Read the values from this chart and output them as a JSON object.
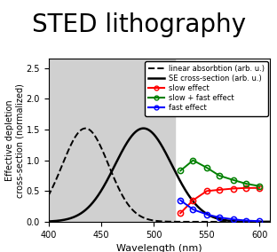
{
  "title": "STED lithography",
  "xlabel": "Wavelength (nm)",
  "ylabel": "Effective depletion\ncross-section (normalized)",
  "xlim": [
    400,
    610
  ],
  "ylim": [
    0,
    2.65
  ],
  "yticks": [
    0,
    0.5,
    1,
    1.5,
    2,
    2.5
  ],
  "xticks": [
    400,
    450,
    500,
    550,
    600
  ],
  "shaded_region": [
    400,
    520
  ],
  "shade_color": "#d0d0d0",
  "dashed_peak": 435,
  "dashed_sigma": 22,
  "dashed_amplitude": 1.52,
  "solid_peak": 490,
  "solid_sigma": 27,
  "solid_amplitude": 1.52,
  "red_x": [
    525,
    537,
    550,
    562,
    575,
    587,
    600
  ],
  "red_y": [
    0.14,
    0.35,
    0.5,
    0.52,
    0.54,
    0.55,
    0.55
  ],
  "green_x": [
    525,
    537,
    550,
    562,
    575,
    587,
    600
  ],
  "green_y": [
    0.83,
    1.0,
    0.88,
    0.75,
    0.68,
    0.62,
    0.58
  ],
  "blue_x": [
    525,
    537,
    550,
    562,
    575,
    587,
    600
  ],
  "blue_y": [
    0.35,
    0.2,
    0.12,
    0.07,
    0.04,
    0.02,
    0.01
  ],
  "legend_entries": [
    "linear absorbtion (arb. u.)",
    "SE cross-section (arb. u.)",
    "slow effect",
    "slow + fast effect",
    "fast effect"
  ],
  "title_fontsize": 20,
  "axis_fontsize": 8,
  "tick_fontsize": 7,
  "legend_fontsize": 6
}
